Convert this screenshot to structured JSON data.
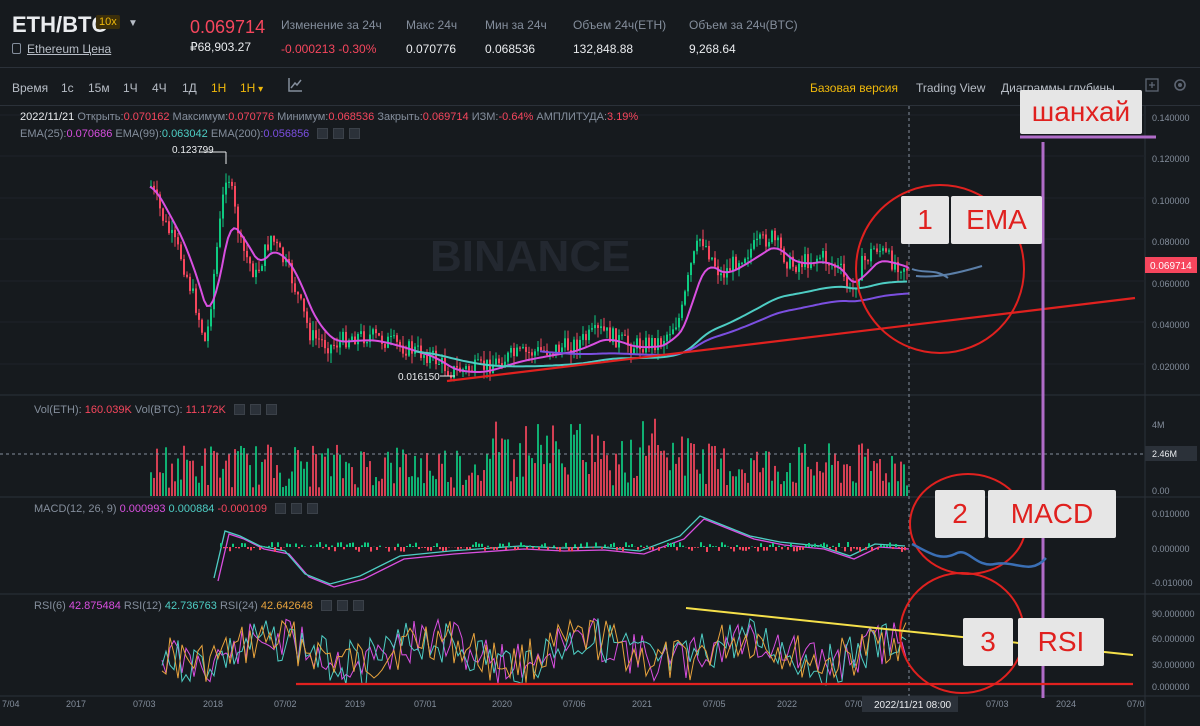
{
  "header": {
    "pair": "ETH/BTC",
    "leverage": "10x",
    "subtitle": "Ethereum Цена",
    "price": "0.069714",
    "price_rub": "₽68,903.27",
    "stats": [
      {
        "label": "Изменение за 24ч",
        "value": "-0.000213 -0.30%",
        "negative": true
      },
      {
        "label": "Макс 24ч",
        "value": "0.070776"
      },
      {
        "label": "Мин за 24ч",
        "value": "0.068536"
      },
      {
        "label": "Объем 24ч(ETH)",
        "value": "132,848.88"
      },
      {
        "label": "Объем за 24ч(BTC)",
        "value": "9,268.64"
      }
    ]
  },
  "toolbar": {
    "timeframes": [
      "Время",
      "1с",
      "15м",
      "1Ч",
      "4Ч",
      "1Д",
      "1Н",
      "1Н"
    ],
    "active_timeframe_index": 6,
    "basic_version": "Базовая версия",
    "trading_view": "Trading View",
    "depth": "Диаграммы глубины"
  },
  "ohlc_line": {
    "date": "2022/11/21",
    "open_label": "Открыть:",
    "open": "0.070162",
    "high_label": "Максимум:",
    "high": "0.070776",
    "low_label": "Минимум:",
    "low": "0.068536",
    "close_label": "Закрыть:",
    "close": "0.069714",
    "change_label": "ИЗМ:",
    "change": "-0.64%",
    "amp_label": "АМПЛИТУДА:",
    "amp": "3.19%"
  },
  "ema_line": {
    "ema25_label": "EMA(25):",
    "ema25": "0.070686",
    "ema99_label": "EMA(99):",
    "ema99": "0.063042",
    "ema200_label": "EMA(200):",
    "ema200": "0.056856"
  },
  "vol_line": {
    "eth_label": "Vol(ETH):",
    "eth": "160.039K",
    "btc_label": "Vol(BTC):",
    "btc": "11.172K"
  },
  "macd_line": {
    "label": "MACD(12, 26, 9)",
    "v1": "0.000993",
    "v2": "0.000884",
    "v3": "-0.000109"
  },
  "rsi_line": {
    "rsi6_label": "RSI(6)",
    "rsi6": "42.875484",
    "rsi12_label": "RSI(12)",
    "rsi12": "42.736763",
    "rsi24_label": "RSI(24)",
    "rsi24": "42.642648"
  },
  "watermark": "BINANCE",
  "price_axis": [
    "0.140000",
    "0.120000",
    "0.100000",
    "0.080000",
    "0.060000",
    "0.040000",
    "0.020000"
  ],
  "current_price_tag": "0.069714",
  "high_marker": "0.123799",
  "low_marker": "0.016150",
  "vol_axis": [
    "4M",
    "2.46M",
    "0.00"
  ],
  "macd_axis": [
    "0.010000",
    "0.000000",
    "-0.010000"
  ],
  "rsi_axis": [
    "90.000000",
    "60.000000",
    "30.000000",
    "0.000000"
  ],
  "time_axis": [
    "7/04",
    "2017",
    "07/03",
    "2018",
    "07/02",
    "2019",
    "07/01",
    "2020",
    "07/06",
    "2021",
    "07/05",
    "2022",
    "07/04",
    "07/03",
    "2024",
    "07/0"
  ],
  "crosshair_time": "2022/11/21 08:00",
  "annotations": {
    "shanghai": "шанхай",
    "ema_num": "1",
    "ema_text": "EMA",
    "macd_num": "2",
    "macd_text": "MACD",
    "rsi_num": "3",
    "rsi_text": "RSI"
  },
  "colors": {
    "up": "#0ecb81",
    "down": "#f6465d",
    "ema25": "#d94fe0",
    "ema99": "#4ecdc4",
    "ema200": "#7b4fe0",
    "annotation_red": "#e0211f",
    "annotation_purple": "#b06cc8",
    "annotation_yellow": "#f5e04a",
    "accent": "#f0b90b"
  }
}
